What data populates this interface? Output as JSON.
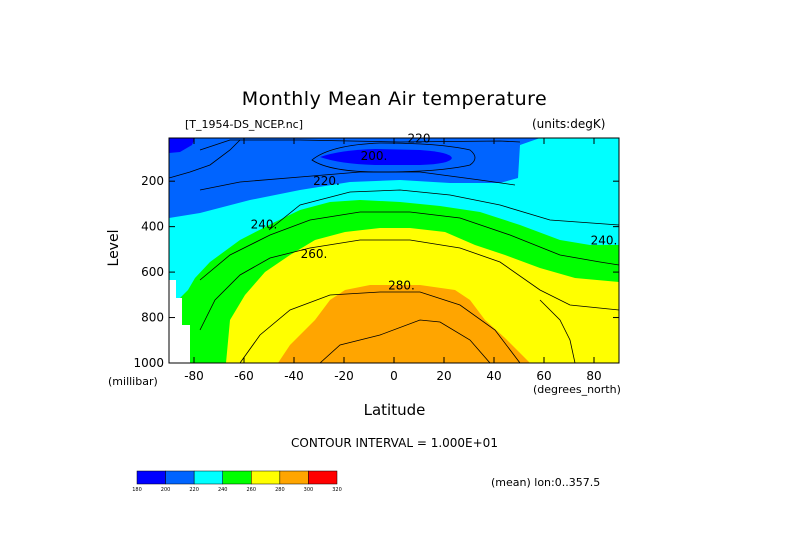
{
  "chart_data": {
    "type": "contour",
    "title": "Monthly Mean Air temperature",
    "file_label": "[T_1954-DS_NCEP.nc]",
    "units_label": "(units:degK)",
    "xlabel": "Latitude",
    "xunit": "(degrees_north)",
    "ylabel": "Level",
    "yunit": "(millibar)",
    "xlim": [
      -90,
      90
    ],
    "ylim": [
      1000,
      10
    ],
    "x_ticks": [
      -80,
      -60,
      -40,
      -20,
      0,
      20,
      40,
      60,
      80
    ],
    "x_tick_labels": [
      "-80",
      "-60",
      "-40",
      "-20",
      "0",
      "20",
      "40",
      "60",
      "80"
    ],
    "y_ticks": [
      200,
      400,
      600,
      800,
      1000
    ],
    "y_tick_labels": [
      "200",
      "400",
      "600",
      "800",
      "1000"
    ],
    "contour_interval": "CONTOUR INTERVAL = 1.000E+01",
    "contour_labels": [
      "220",
      "200.",
      "220.",
      "240.",
      "260.",
      "280.",
      "240."
    ],
    "mean_label": "(mean) lon:0..357.5",
    "levels": [
      180,
      200,
      220,
      240,
      260,
      280,
      300,
      320
    ],
    "colorbar_labels": [
      "180",
      "200",
      "220",
      "240",
      "260",
      "280",
      "300",
      "320"
    ],
    "colors": [
      "#0000ff",
      "#0064ff",
      "#00ffff",
      "#00ff00",
      "#ffff00",
      "#ffa500",
      "#ff0000"
    ]
  }
}
